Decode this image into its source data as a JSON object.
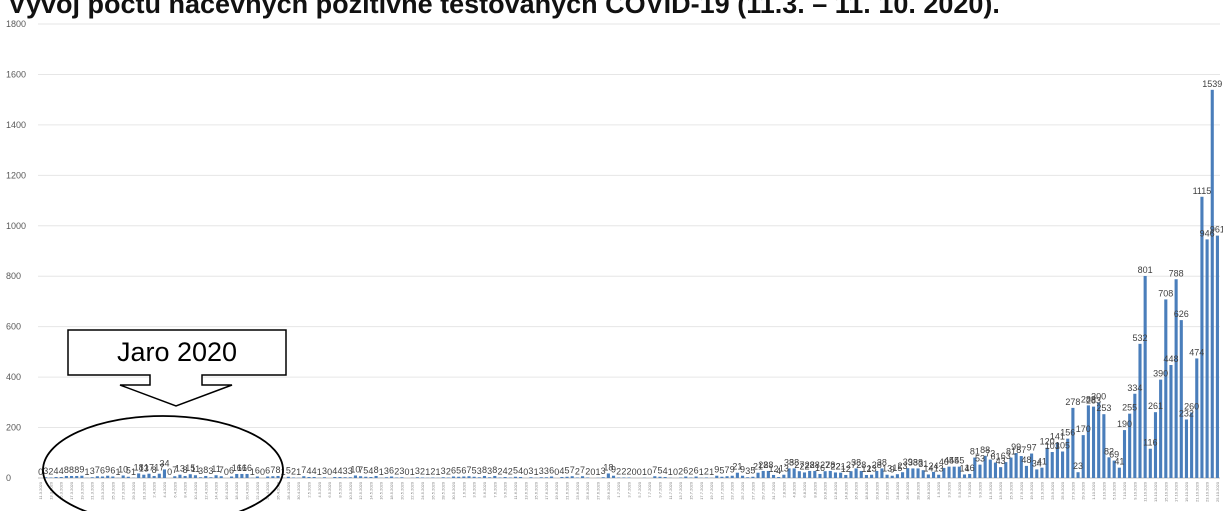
{
  "title": "Vývoj počtu nacevných pozitivně testovaných COVID-19 (11.3. – 11. 10. 2020).",
  "annotation": {
    "label": "Jaro 2020"
  },
  "chart_data": {
    "type": "bar",
    "title": "Vývoj počtu nacevných pozitivně testovaných COVID-19 (11.3. – 11. 10. 2020).",
    "xlabel": "",
    "ylabel": "",
    "ylim": [
      0,
      1800
    ],
    "yticks": [
      0,
      200,
      400,
      600,
      800,
      1000,
      1200,
      1400,
      1600,
      1800
    ],
    "bar_color": "#4a7ebb",
    "start_date": "2020-03-11",
    "tick_step_days": 2,
    "values": [
      0,
      3,
      2,
      4,
      4,
      8,
      8,
      8,
      9,
      1,
      3,
      7,
      6,
      9,
      6,
      1,
      10,
      5,
      1,
      18,
      13,
      17,
      8,
      17,
      34,
      0,
      7,
      13,
      8,
      15,
      11,
      3,
      8,
      3,
      11,
      7,
      0,
      6,
      16,
      16,
      16,
      1,
      6,
      0,
      6,
      7,
      8,
      1,
      5,
      2,
      1,
      7,
      4,
      4,
      1,
      3,
      0,
      4,
      4,
      3,
      3,
      10,
      7,
      5,
      4,
      8,
      1,
      3,
      6,
      2,
      3,
      0,
      1,
      3,
      2,
      1,
      2,
      1,
      3,
      2,
      6,
      5,
      6,
      7,
      5,
      3,
      8,
      3,
      8,
      2,
      4,
      2,
      5,
      4,
      0,
      3,
      1,
      3,
      3,
      6,
      0,
      4,
      5,
      7,
      2,
      7,
      2,
      0,
      1,
      3,
      18,
      9,
      2,
      2,
      2,
      0,
      0,
      1,
      0,
      7,
      5,
      4,
      1,
      0,
      2,
      6,
      2,
      6,
      1,
      2,
      1,
      9,
      5,
      7,
      9,
      21,
      9,
      3,
      5,
      21,
      28,
      28,
      12,
      4,
      13,
      38,
      38,
      27,
      22,
      28,
      28,
      16,
      27,
      28,
      22,
      21,
      12,
      27,
      38,
      28,
      12,
      13,
      28,
      38,
      13,
      9,
      15,
      23,
      39,
      38,
      38,
      31,
      14,
      24,
      13,
      40,
      45,
      45,
      45,
      14,
      16,
      81,
      53,
      88,
      73,
      61,
      43,
      63,
      81,
      99,
      87,
      48,
      97,
      34,
      41,
      120,
      103,
      141,
      105,
      156,
      278,
      23,
      170,
      288,
      283,
      300,
      253,
      82,
      69,
      41,
      190,
      255,
      334,
      532,
      801,
      116,
      261,
      390,
      708,
      448,
      788,
      626,
      232,
      260,
      474,
      1115,
      946,
      1539,
      961
    ]
  }
}
